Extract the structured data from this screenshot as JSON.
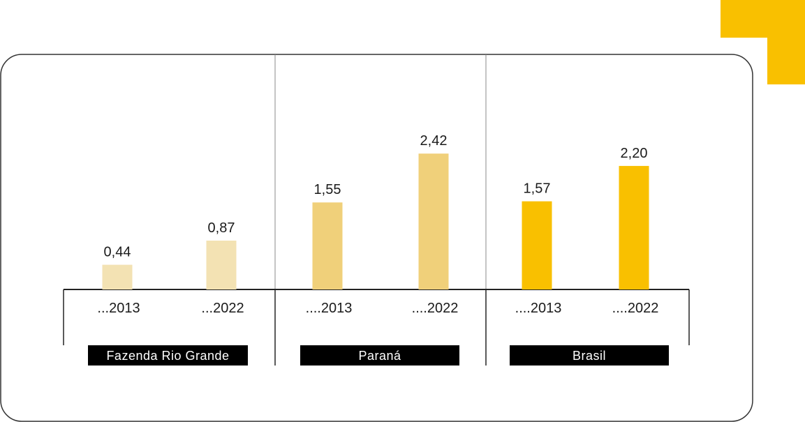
{
  "colors": {
    "accent": "#F9C000",
    "frame": "#333333",
    "group_label_bg": "#000000",
    "group_label_text": "#ffffff",
    "axis": "#222222",
    "divider": "#888888"
  },
  "chart_data": {
    "type": "bar",
    "title": "",
    "xlabel": "",
    "ylabel": "",
    "ylim": [
      0,
      2.8
    ],
    "decimal_separator": ",",
    "groups": [
      {
        "name": "Fazenda Rio Grande",
        "color": "#F3E2B3",
        "bars": [
          {
            "category": "...2013",
            "value": 0.44,
            "label": "0,44"
          },
          {
            "category": "...2022",
            "value": 0.87,
            "label": "0,87"
          }
        ]
      },
      {
        "name": "Paraná",
        "color": "#F0D07A",
        "bars": [
          {
            "category": "....2013",
            "value": 1.55,
            "label": "1,55"
          },
          {
            "category": "....2022",
            "value": 2.42,
            "label": "2,42"
          }
        ]
      },
      {
        "name": "Brasil",
        "color": "#F9C000",
        "bars": [
          {
            "category": "....2013",
            "value": 1.57,
            "label": "1,57"
          },
          {
            "category": "....2022",
            "value": 2.2,
            "label": "2,20"
          }
        ]
      }
    ]
  }
}
